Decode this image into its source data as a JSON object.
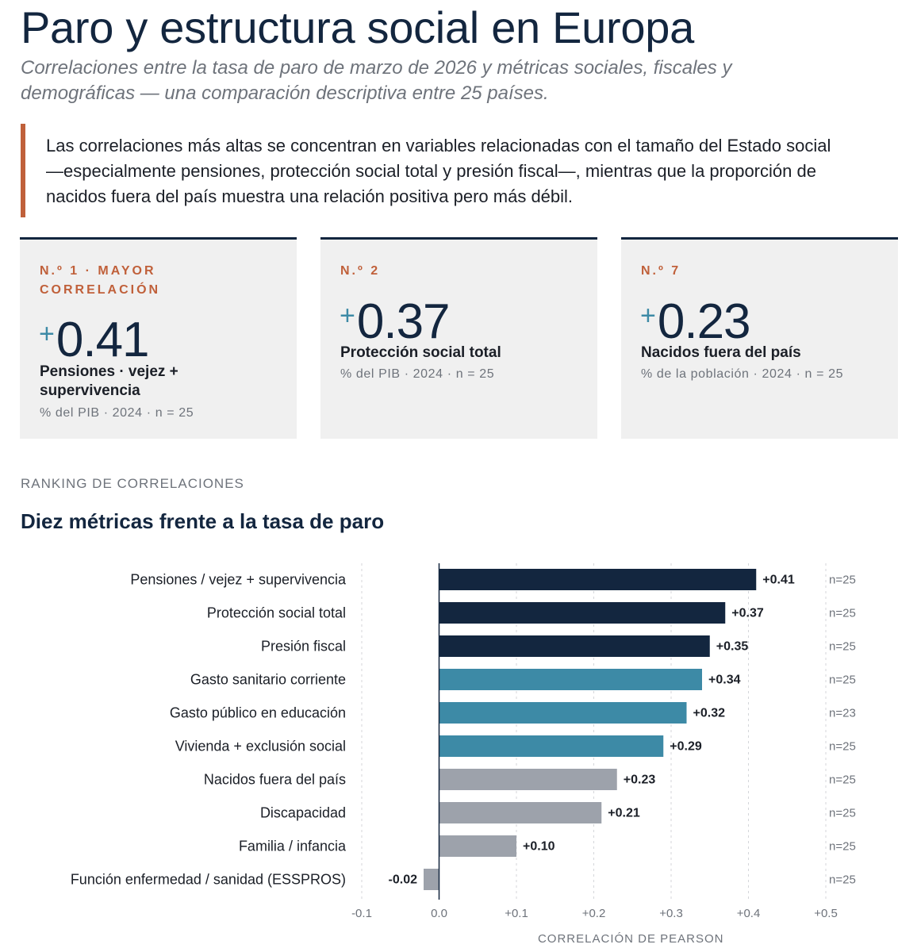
{
  "header": {
    "title": "Paro y estructura social en Europa",
    "subtitle": "Correlaciones entre la tasa de paro de marzo de 2026 y métricas sociales, fiscales y demográficas — una comparación descriptiva entre 25 países."
  },
  "callout": {
    "text": "Las correlaciones más altas se concentran en variables relacionadas con el tamaño del Estado social —especialmente pensiones, protección social total y presión fiscal—, mientras que la proporción de nacidos fuera del país muestra una relación positiva pero más débil."
  },
  "cards": [
    {
      "rank": "N.º 1 · MAYOR CORRELACIÓN",
      "sign": "+",
      "value": "0.41",
      "label": "Pensiones · vejez + supervivencia",
      "meta": "% del PIB · 2024 · n = 25"
    },
    {
      "rank": "N.º 2",
      "sign": "+",
      "value": "0.37",
      "label": "Protección social total",
      "meta": "% del PIB · 2024 · n = 25"
    },
    {
      "rank": "N.º 7",
      "sign": "+",
      "value": "0.23",
      "label": "Nacidos fuera del país",
      "meta": "% de la población · 2024 · n = 25"
    }
  ],
  "section": {
    "kicker": "RANKING DE CORRELACIONES",
    "heading": "Diez métricas frente a la tasa de paro"
  },
  "chart_data": {
    "type": "bar",
    "orientation": "horizontal",
    "categories": [
      "Pensiones / vejez + supervivencia",
      "Protección social total",
      "Presión fiscal",
      "Gasto sanitario corriente",
      "Gasto público en educación",
      "Vivienda + exclusión social",
      "Nacidos fuera del país",
      "Discapacidad",
      "Familia / infancia",
      "Función enfermedad / sanidad (ESSPROS)"
    ],
    "values": [
      0.41,
      0.37,
      0.35,
      0.34,
      0.32,
      0.29,
      0.23,
      0.21,
      0.1,
      -0.02
    ],
    "value_labels": [
      "+0.41",
      "+0.37",
      "+0.35",
      "+0.34",
      "+0.32",
      "+0.29",
      "+0.23",
      "+0.21",
      "+0.10",
      "-0.02"
    ],
    "n_labels": [
      "n=25",
      "n=25",
      "n=25",
      "n=25",
      "n=23",
      "n=25",
      "n=25",
      "n=25",
      "n=25",
      "n=25"
    ],
    "bar_colors": [
      "#13263f",
      "#13263f",
      "#13263f",
      "#3d8aa6",
      "#3d8aa6",
      "#3d8aa6",
      "#9da2ab",
      "#9da2ab",
      "#9da2ab",
      "#9da2ab"
    ],
    "xlim": [
      -0.1,
      0.5
    ],
    "xticks": [
      -0.1,
      0.0,
      0.1,
      0.2,
      0.3,
      0.4,
      0.5
    ],
    "xtick_labels": [
      "-0.1",
      "0.0",
      "+0.1",
      "+0.2",
      "+0.3",
      "+0.4",
      "+0.5"
    ],
    "xlabel": "CORRELACIÓN DE PEARSON",
    "grid": "vertical dotted",
    "legend": "none"
  },
  "colors": {
    "accent": "#c0603a",
    "navy": "#13263f",
    "teal": "#3d8aa6",
    "grey": "#9da2ab"
  }
}
